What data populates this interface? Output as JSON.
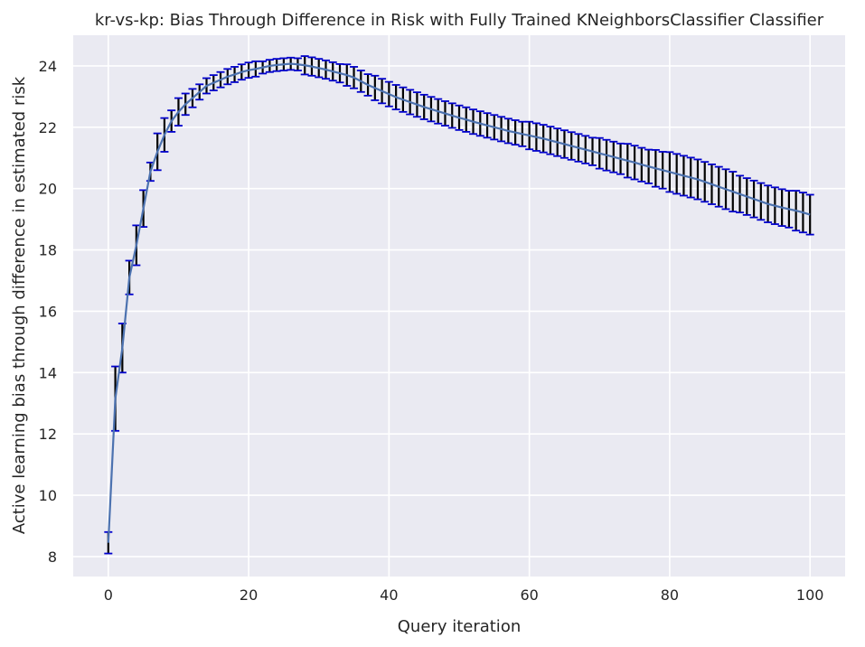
{
  "chart_data": {
    "type": "line",
    "title": "kr-vs-kp: Bias Through Difference in Risk with Fully Trained KNeighborsClassifier Classifier",
    "xlabel": "Query iteration",
    "ylabel": "Active learning bias through difference in estimated risk",
    "xlim": [
      -5,
      105
    ],
    "ylim": [
      7.35,
      25.0
    ],
    "xticks": [
      0,
      20,
      40,
      60,
      80,
      100
    ],
    "yticks": [
      8,
      10,
      12,
      14,
      16,
      18,
      20,
      22,
      24
    ],
    "grid": true,
    "background": "#eaeaf2",
    "line_color": "#4c72b0",
    "errorbar_color": "#000000",
    "cap_color": "#0000cc",
    "series": [
      {
        "x": [
          0,
          1,
          2,
          3,
          4,
          5,
          6,
          7,
          8,
          9,
          10,
          11,
          12,
          13,
          14,
          15,
          16,
          17,
          18,
          19,
          20,
          21,
          22,
          23,
          24,
          25,
          26,
          27,
          28,
          29,
          30,
          31,
          32,
          33,
          34,
          35,
          36,
          37,
          38,
          39,
          40,
          41,
          42,
          43,
          44,
          45,
          46,
          47,
          48,
          49,
          50,
          51,
          52,
          53,
          54,
          55,
          56,
          57,
          58,
          59,
          60,
          61,
          62,
          63,
          64,
          65,
          66,
          67,
          68,
          69,
          70,
          71,
          72,
          73,
          74,
          75,
          76,
          77,
          78,
          79,
          80,
          81,
          82,
          83,
          84,
          85,
          86,
          87,
          88,
          89,
          90,
          91,
          92,
          93,
          94,
          95,
          96,
          97,
          98,
          99,
          100
        ],
        "values": [
          8.45,
          13.15,
          14.8,
          17.1,
          18.15,
          19.35,
          20.55,
          21.2,
          21.75,
          22.2,
          22.5,
          22.75,
          22.95,
          23.15,
          23.35,
          23.45,
          23.55,
          23.65,
          23.72,
          23.8,
          23.86,
          23.9,
          23.95,
          24.0,
          24.03,
          24.05,
          24.07,
          24.05,
          24.02,
          23.98,
          23.93,
          23.88,
          23.82,
          23.76,
          23.7,
          23.62,
          23.5,
          23.38,
          23.28,
          23.18,
          23.08,
          22.98,
          22.9,
          22.82,
          22.74,
          22.66,
          22.59,
          22.52,
          22.45,
          22.38,
          22.31,
          22.25,
          22.18,
          22.12,
          22.06,
          22.0,
          21.94,
          21.88,
          21.83,
          21.78,
          21.73,
          21.68,
          21.63,
          21.57,
          21.51,
          21.45,
          21.39,
          21.33,
          21.27,
          21.21,
          21.15,
          21.09,
          21.03,
          20.97,
          20.91,
          20.85,
          20.78,
          20.72,
          20.66,
          20.6,
          20.54,
          20.48,
          20.42,
          20.36,
          20.3,
          20.22,
          20.14,
          20.06,
          19.98,
          19.9,
          19.82,
          19.74,
          19.66,
          19.58,
          19.5,
          19.44,
          19.38,
          19.33,
          19.28,
          19.22,
          19.15
        ],
        "errors": [
          0.35,
          1.05,
          0.8,
          0.55,
          0.65,
          0.6,
          0.3,
          0.6,
          0.55,
          0.35,
          0.45,
          0.35,
          0.3,
          0.25,
          0.25,
          0.25,
          0.25,
          0.25,
          0.25,
          0.25,
          0.25,
          0.25,
          0.2,
          0.2,
          0.2,
          0.2,
          0.2,
          0.2,
          0.3,
          0.3,
          0.3,
          0.3,
          0.3,
          0.3,
          0.35,
          0.35,
          0.35,
          0.35,
          0.4,
          0.4,
          0.4,
          0.4,
          0.4,
          0.4,
          0.4,
          0.4,
          0.4,
          0.4,
          0.4,
          0.4,
          0.4,
          0.4,
          0.4,
          0.4,
          0.4,
          0.4,
          0.4,
          0.4,
          0.4,
          0.4,
          0.45,
          0.45,
          0.45,
          0.45,
          0.45,
          0.45,
          0.45,
          0.45,
          0.45,
          0.45,
          0.5,
          0.5,
          0.5,
          0.5,
          0.55,
          0.55,
          0.55,
          0.55,
          0.6,
          0.6,
          0.65,
          0.65,
          0.65,
          0.65,
          0.65,
          0.65,
          0.65,
          0.65,
          0.65,
          0.65,
          0.6,
          0.6,
          0.6,
          0.6,
          0.6,
          0.6,
          0.6,
          0.6,
          0.65,
          0.65,
          0.65
        ]
      }
    ]
  }
}
